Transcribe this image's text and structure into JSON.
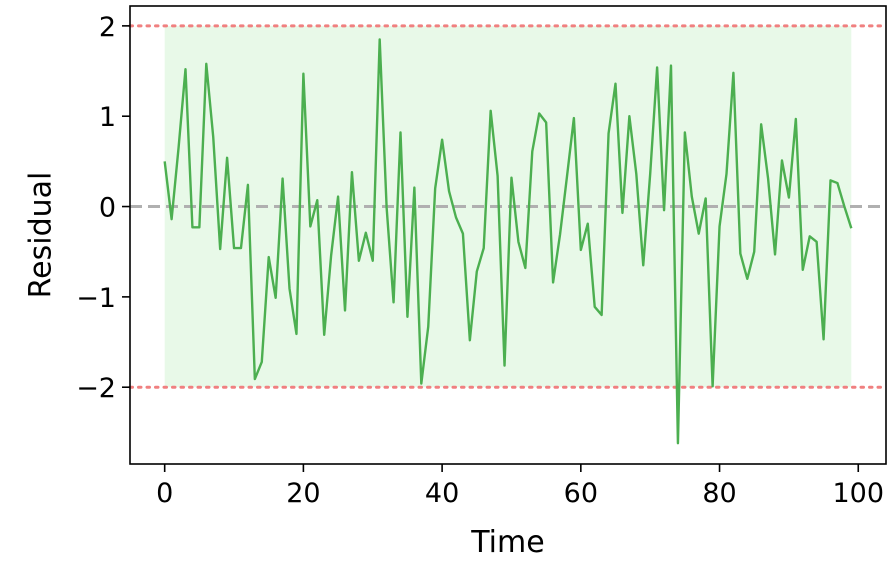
{
  "chart_data": {
    "type": "line",
    "title": "",
    "xlabel": "Time",
    "ylabel": "Residual",
    "xlim": [
      -5,
      104
    ],
    "ylim": [
      -2.85,
      2.22
    ],
    "xticks": [
      0,
      20,
      40,
      60,
      80,
      100
    ],
    "yticks": [
      -2,
      -1,
      0,
      1,
      2
    ],
    "ytick_labels": [
      "−2",
      "−1",
      "0",
      "1",
      "2"
    ],
    "grid": false,
    "legend": "none",
    "colors": {
      "line": "#4caf50",
      "band": "#e8f9e8",
      "threshold": "#f08080",
      "zero_line": "#b0b0b0"
    },
    "band": {
      "x_start": 0,
      "x_end": 99,
      "y_low": -2,
      "y_high": 2
    },
    "reference_lines": [
      {
        "name": "upper-threshold",
        "y": 2,
        "style": "dotted"
      },
      {
        "name": "lower-threshold",
        "y": -2,
        "style": "dotted"
      },
      {
        "name": "zero-line",
        "y": 0,
        "style": "dashed"
      }
    ],
    "series": [
      {
        "x": [
          0,
          1,
          2,
          3,
          4,
          5,
          6,
          7,
          8,
          9,
          10,
          11,
          12,
          13,
          14,
          15,
          16,
          17,
          18,
          19,
          20,
          21,
          22,
          23,
          24,
          25,
          26,
          27,
          28,
          29,
          30,
          31,
          32,
          33,
          34,
          35,
          36,
          37,
          38,
          39,
          40,
          41,
          42,
          43,
          44,
          45,
          46,
          47,
          48,
          49,
          50,
          51,
          52,
          53,
          54,
          55,
          56,
          57,
          58,
          59,
          60,
          61,
          62,
          63,
          64,
          65,
          66,
          67,
          68,
          69,
          70,
          71,
          72,
          73,
          74,
          75,
          76,
          77,
          78,
          79,
          80,
          81,
          82,
          83,
          84,
          85,
          86,
          87,
          88,
          89,
          90,
          91,
          92,
          93,
          94,
          95,
          96,
          97,
          98,
          99
        ],
        "values": [
          0.5,
          -0.14,
          0.65,
          1.52,
          -0.23,
          -0.23,
          1.58,
          0.77,
          -0.47,
          0.54,
          -0.46,
          -0.46,
          0.24,
          -1.91,
          -1.72,
          -0.56,
          -1.01,
          0.31,
          -0.91,
          -1.41,
          1.47,
          -0.22,
          0.07,
          -1.42,
          -0.54,
          0.11,
          -1.15,
          0.38,
          -0.6,
          -0.29,
          -0.6,
          1.85,
          -0.01,
          -1.06,
          0.82,
          -1.22,
          0.21,
          -1.96,
          -1.33,
          0.2,
          0.74,
          0.17,
          -0.12,
          -0.3,
          -1.48,
          -0.72,
          -0.46,
          1.06,
          0.34,
          -1.76,
          0.32,
          -0.39,
          -0.68,
          0.61,
          1.03,
          0.93,
          -0.84,
          -0.31,
          0.33,
          0.98,
          -0.48,
          -0.19,
          -1.11,
          -1.2,
          0.81,
          1.36,
          -0.07,
          1.0,
          0.36,
          -0.65,
          0.36,
          1.54,
          -0.04,
          1.56,
          -2.62,
          0.82,
          0.11,
          -0.3,
          0.09,
          -1.99,
          -0.22,
          0.36,
          1.48,
          -0.52,
          -0.8,
          -0.5,
          0.91,
          0.31,
          -0.53,
          0.51,
          0.1,
          0.97,
          -0.7,
          -0.33,
          -0.39,
          -1.47,
          0.29,
          0.26,
          0.0,
          -0.24
        ]
      }
    ]
  }
}
